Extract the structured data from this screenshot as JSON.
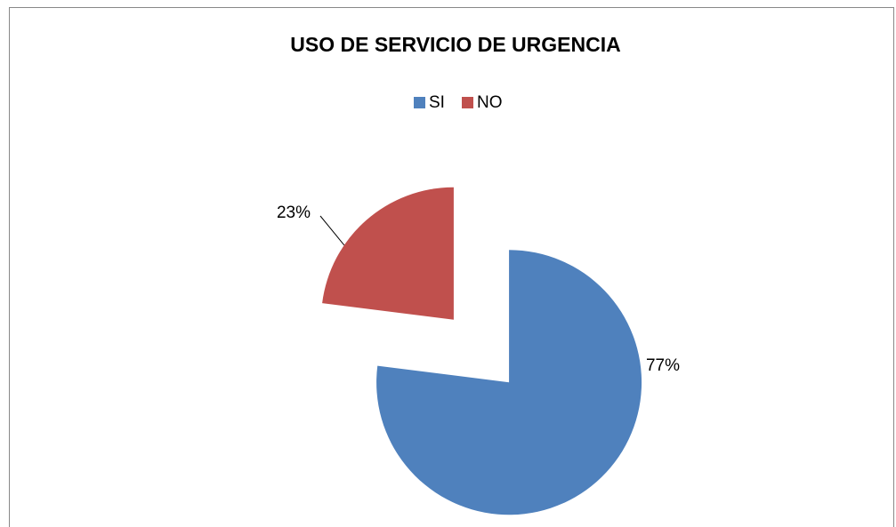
{
  "chart_data": {
    "type": "pie",
    "title": "USO DE SERVICIO DE URGENCIA",
    "categories": [
      "SI",
      "NO"
    ],
    "values": [
      77,
      23
    ],
    "value_labels": [
      "77%",
      "23%"
    ],
    "colors": [
      "#4f81bd",
      "#c0504d"
    ],
    "legend": "top"
  }
}
